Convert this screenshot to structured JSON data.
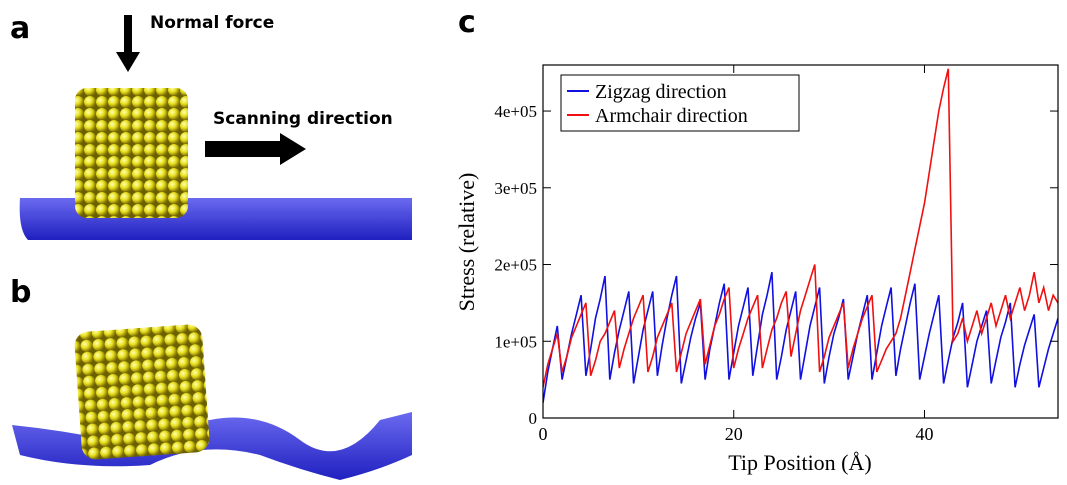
{
  "panels": [
    {
      "label": "a",
      "annotations": [
        "Normal force",
        "Scanning direction"
      ]
    },
    {
      "label": "b"
    }
  ],
  "chart_data": {
    "type": "line",
    "panel_label": "c",
    "xlabel": "Tip Position (Å)",
    "ylabel": "Stress (relative)",
    "xlim": [
      0,
      54
    ],
    "ylim": [
      0,
      460000
    ],
    "xticks": [
      0,
      20,
      40
    ],
    "yticks": [
      0,
      {
        "value": 100000,
        "label": "1e+05"
      },
      {
        "value": 200000,
        "label": "2e+05"
      },
      {
        "value": 300000,
        "label": "3e+05"
      },
      {
        "value": 400000,
        "label": "4e+05"
      }
    ],
    "legend": "upper left",
    "x": [
      0,
      0.5,
      1,
      1.5,
      2,
      2.5,
      3,
      3.5,
      4,
      4.5,
      5,
      5.5,
      6,
      6.5,
      7,
      7.5,
      8,
      8.5,
      9,
      9.5,
      10,
      10.5,
      11,
      11.5,
      12,
      12.5,
      13,
      13.5,
      14,
      14.5,
      15,
      15.5,
      16,
      16.5,
      17,
      17.5,
      18,
      18.5,
      19,
      19.5,
      20,
      20.5,
      21,
      21.5,
      22,
      22.5,
      23,
      23.5,
      24,
      24.5,
      25,
      25.5,
      26,
      26.5,
      27,
      27.5,
      28,
      28.5,
      29,
      29.5,
      30,
      30.5,
      31,
      31.5,
      32,
      32.5,
      33,
      33.5,
      34,
      34.5,
      35,
      35.5,
      36,
      36.5,
      37,
      37.5,
      38,
      38.5,
      39,
      39.5,
      40,
      40.5,
      41,
      41.5,
      42,
      42.5,
      43,
      43.5,
      44,
      44.5,
      45,
      45.5,
      46,
      46.5,
      47,
      47.5,
      48,
      48.5,
      49,
      49.5,
      50,
      50.5,
      51,
      51.5,
      52,
      52.5,
      53,
      53.5,
      54
    ],
    "series": [
      {
        "name": "Zigzag direction",
        "color": "#1010e0",
        "values": [
          20000,
          60000,
          90000,
          120000,
          50000,
          80000,
          110000,
          135000,
          160000,
          55000,
          90000,
          130000,
          155000,
          185000,
          50000,
          85000,
          115000,
          140000,
          165000,
          45000,
          80000,
          115000,
          140000,
          165000,
          55000,
          95000,
          130000,
          160000,
          185000,
          45000,
          75000,
          105000,
          130000,
          150000,
          50000,
          90000,
          120000,
          150000,
          175000,
          50000,
          85000,
          120000,
          145000,
          170000,
          55000,
          95000,
          135000,
          160000,
          190000,
          50000,
          80000,
          115000,
          140000,
          165000,
          50000,
          85000,
          120000,
          145000,
          170000,
          45000,
          80000,
          110000,
          130000,
          155000,
          50000,
          80000,
          110000,
          135000,
          160000,
          50000,
          85000,
          120000,
          145000,
          170000,
          55000,
          90000,
          120000,
          150000,
          175000,
          50000,
          80000,
          110000,
          135000,
          160000,
          45000,
          75000,
          105000,
          125000,
          150000,
          40000,
          70000,
          100000,
          120000,
          140000,
          45000,
          75000,
          105000,
          125000,
          150000,
          40000,
          70000,
          95000,
          115000,
          135000,
          40000,
          65000,
          90000,
          110000,
          130000
        ]
      },
      {
        "name": "Armchair direction",
        "color": "#f01010",
        "values": [
          40000,
          70000,
          90000,
          110000,
          60000,
          80000,
          105000,
          120000,
          135000,
          150000,
          55000,
          75000,
          100000,
          110000,
          125000,
          140000,
          65000,
          90000,
          110000,
          130000,
          145000,
          160000,
          60000,
          80000,
          105000,
          120000,
          135000,
          150000,
          60000,
          85000,
          110000,
          125000,
          140000,
          155000,
          70000,
          95000,
          120000,
          135000,
          155000,
          170000,
          65000,
          90000,
          110000,
          130000,
          145000,
          160000,
          65000,
          90000,
          115000,
          130000,
          150000,
          165000,
          80000,
          110000,
          140000,
          160000,
          180000,
          200000,
          60000,
          80000,
          105000,
          120000,
          135000,
          150000,
          65000,
          90000,
          110000,
          130000,
          145000,
          160000,
          60000,
          75000,
          90000,
          100000,
          110000,
          130000,
          160000,
          190000,
          220000,
          250000,
          280000,
          320000,
          360000,
          400000,
          430000,
          455000,
          100000,
          110000,
          130000,
          100000,
          120000,
          140000,
          110000,
          130000,
          150000,
          120000,
          140000,
          160000,
          130000,
          150000,
          170000,
          140000,
          160000,
          190000,
          150000,
          170000,
          140000,
          160000,
          150000
        ]
      }
    ]
  }
}
